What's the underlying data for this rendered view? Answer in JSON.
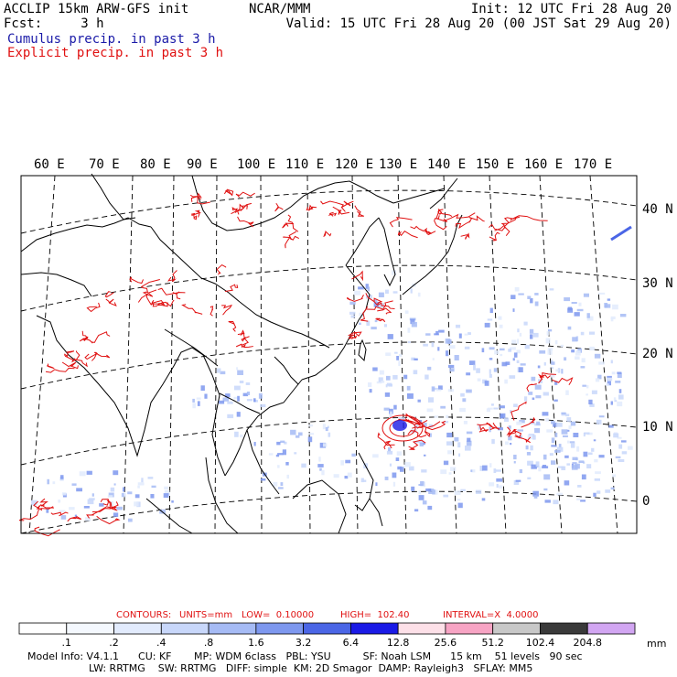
{
  "header": {
    "left_line1": "ACCLIP 15km ARW-GFS init",
    "left_line2": "Fcst:     3 h",
    "center_line1": "NCAR/MMM",
    "right_line1": "Init: 12 UTC Fri 28 Aug 20",
    "right_line2": "Valid: 15 UTC Fri 28 Aug 20 (00 JST Sat 29 Aug 20)",
    "legend_cumulus": "Cumulus precip. in past 3 h",
    "legend_explicit": "Explicit precip. in past 3 h"
  },
  "map": {
    "lon_labels": [
      "60 E",
      "70 E",
      "80 E",
      "90 E",
      "100 E",
      "110 E",
      "120 E",
      "130 E",
      "140 E",
      "150 E",
      "160 E",
      "170 E"
    ],
    "lat_labels": [
      "40 N",
      "30 N",
      "20 N",
      "10 N",
      "0"
    ],
    "colors": {
      "coast": "#000000",
      "graticule": "#000000",
      "cumulus": "#4f6ff0",
      "explicit": "#e01010"
    }
  },
  "contours": {
    "c1": "CONTOURS:",
    "c2": "UNITS=mm",
    "c3": "LOW=  0.10000",
    "c4": "HIGH=  102.40",
    "c5": "INTERVAL=X  4.0000"
  },
  "colorbar": {
    "labels": [
      ".1",
      ".2",
      ".4",
      ".8",
      "1.6",
      "3.2",
      "6.4",
      "12.8",
      "25.6",
      "51.2",
      "102.4",
      "204.8"
    ],
    "unit": "mm",
    "colors": [
      "#ffffff",
      "#f4f8fe",
      "#e2ebfd",
      "#c8d7fa",
      "#a6bbf5",
      "#7e98ef",
      "#4b66e6",
      "#1a1ae6",
      "#fde0e8",
      "#f7a4c4",
      "#c8c8c8",
      "#3a3a3a",
      "#d2a6f2"
    ]
  },
  "footer": {
    "line1": "Model Info: V4.1.1      CU: KF       MP: WDM 6class   PBL: YSU          SF: Noah LSM      15 km    51 levels   90 sec",
    "line2": "LW: RRTMG    SW: RRTMG   DIFF: simple  KM: 2D Smagor  DAMP: Rayleigh3   SFLAY: MM5"
  }
}
